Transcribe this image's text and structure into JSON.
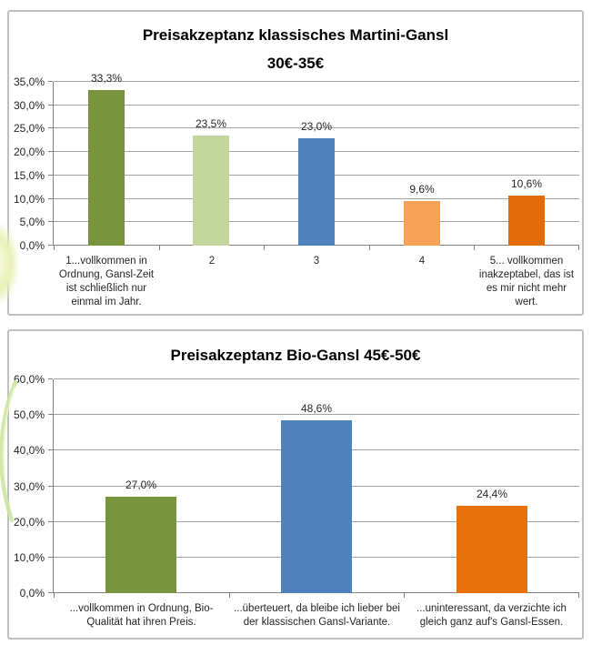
{
  "page": {
    "background_color": "#ffffff"
  },
  "decorations": {
    "watermark_blob_color": "#e7f1b8",
    "watermark_stem_color": "#cde79f"
  },
  "style": {
    "chart_border_color": "#bfbfbf",
    "grid_color": "#a3a3a3",
    "axis_color": "#7f7f7f",
    "text_color": "#262626",
    "title_color": "#000000"
  },
  "chart_data": [
    {
      "type": "bar",
      "title": "Preisakzeptanz klassisches Martini-Gansl 30€-35€",
      "title_lines": [
        "Preisakzeptanz klassisches Martini-Gansl",
        "30€-35€"
      ],
      "categories": [
        "1...vollkommen in Ordnung, Gansl-Zeit ist schließlich nur einmal im Jahr.",
        "2",
        "3",
        "4",
        "5... vollkommen inakzeptabel, das ist es mir nicht mehr wert."
      ],
      "values": [
        33.3,
        23.5,
        23.0,
        9.6,
        10.6
      ],
      "value_labels": [
        "33,3%",
        "23,5%",
        "23,0%",
        "9,6%",
        "10,6%"
      ],
      "bar_colors": [
        "#77933c",
        "#c3d69b",
        "#4f81bd",
        "#f6a155",
        "#e36c0a"
      ],
      "xlabel": "",
      "ylabel": "",
      "ylim": [
        0,
        35
      ],
      "ytick_step": 5,
      "ytick_labels": [
        "0,0%",
        "5,0%",
        "10,0%",
        "15,0%",
        "20,0%",
        "25,0%",
        "30,0%",
        "35,0%"
      ],
      "grid": true,
      "legend": false
    },
    {
      "type": "bar",
      "title": "Preisakzeptanz Bio-Gansl 45€-50€",
      "title_lines": [
        "Preisakzeptanz Bio-Gansl 45€-50€"
      ],
      "categories": [
        "...vollkommen in Ordnung, Bio-Qualität hat ihren Preis.",
        "...überteuert, da bleibe ich lieber bei der klassischen Gansl-Variante.",
        "...uninteressant, da verzichte ich gleich ganz auf's Gansl-Essen."
      ],
      "values": [
        27.0,
        48.6,
        24.4
      ],
      "value_labels": [
        "27,0%",
        "48,6%",
        "24,4%"
      ],
      "bar_colors": [
        "#77933c",
        "#4f81bd",
        "#e8710a"
      ],
      "xlabel": "",
      "ylabel": "",
      "ylim": [
        0,
        60
      ],
      "ytick_step": 10,
      "ytick_labels": [
        "0,0%",
        "10,0%",
        "20,0%",
        "30,0%",
        "40,0%",
        "50,0%",
        "60,0%"
      ],
      "grid": true,
      "legend": false
    }
  ]
}
